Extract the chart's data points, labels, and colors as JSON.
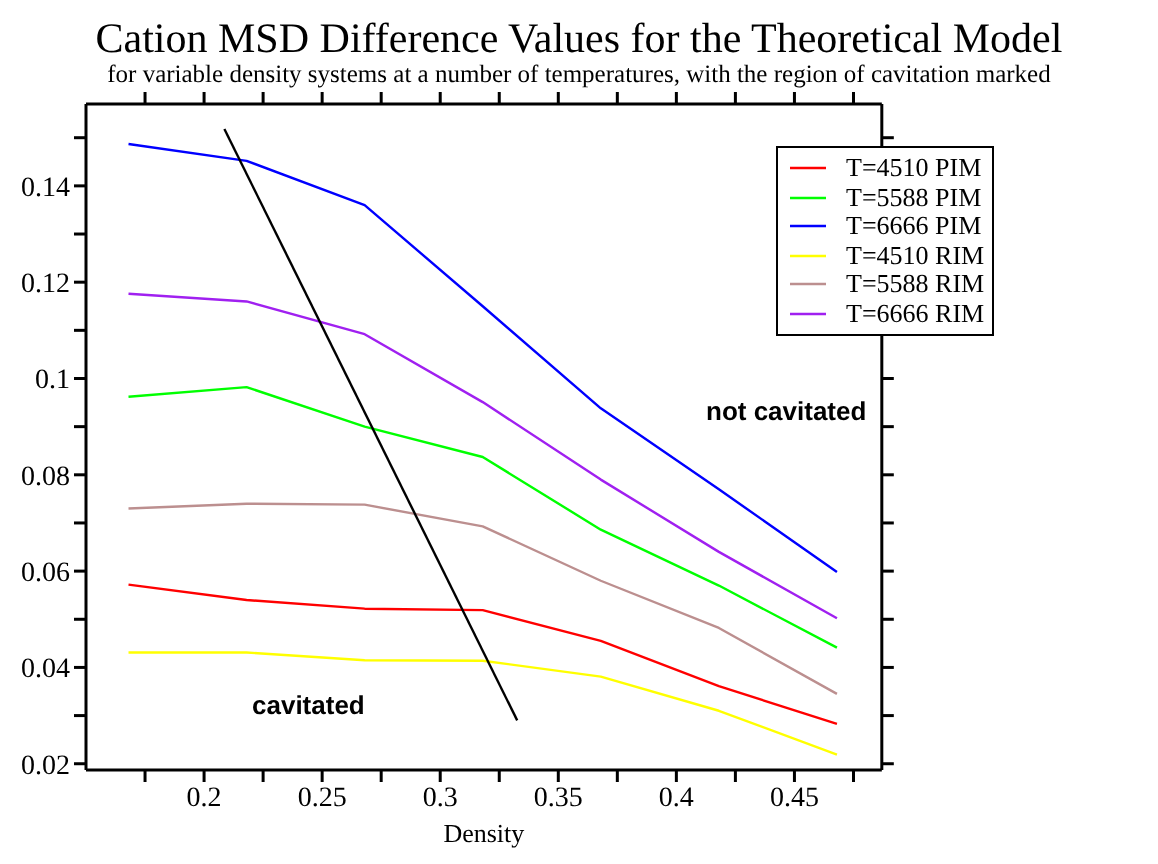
{
  "chart_data": {
    "type": "line",
    "title": "Cation MSD Difference Values for the Theoretical Model",
    "subtitle": "for variable density systems at a number of temperatures, with the region of cavitation marked",
    "xlabel": "Density",
    "x": [
      0.168,
      0.218,
      0.268,
      0.318,
      0.368,
      0.418,
      0.468
    ],
    "series": [
      {
        "name": "T=4510 PIM",
        "color": "#ff0000",
        "values": [
          0.0572,
          0.054,
          0.0522,
          0.0519,
          0.0455,
          0.0361,
          0.0283
        ]
      },
      {
        "name": "T=5588 PIM",
        "color": "#00ff00",
        "values": [
          0.0962,
          0.0982,
          0.09,
          0.0837,
          0.0686,
          0.057,
          0.0441
        ]
      },
      {
        "name": "T=6666 PIM",
        "color": "#0000ff",
        "values": [
          0.1487,
          0.1452,
          0.136,
          0.115,
          0.0938,
          0.077,
          0.0598
        ]
      },
      {
        "name": "T=4510 RIM",
        "color": "#ffff00",
        "values": [
          0.0431,
          0.0431,
          0.0415,
          0.0414,
          0.0381,
          0.031,
          0.0219
        ]
      },
      {
        "name": "T=5588 RIM",
        "color": "#bc8f8f",
        "values": [
          0.073,
          0.074,
          0.0738,
          0.0693,
          0.058,
          0.0482,
          0.0345
        ]
      },
      {
        "name": "T=6666 RIM",
        "color": "#a020f0",
        "values": [
          0.1176,
          0.116,
          0.1092,
          0.0951,
          0.079,
          0.064,
          0.0502
        ]
      },
      {
        "type": "line",
        "color": "#000000",
        "x": [
          0.2086,
          0.3326
        ],
        "values": [
          0.1518,
          0.029
        ]
      }
    ],
    "annotations": [
      "cavitated",
      "not cavitated"
    ],
    "xlim": [
      0.15,
      0.487
    ],
    "xticks": [
      {
        "value": 0.175,
        "label": null
      },
      0.2,
      {
        "value": 0.225,
        "label": null
      },
      0.25,
      {
        "value": 0.275,
        "label": null
      },
      0.3,
      {
        "value": 0.325,
        "label": null
      },
      0.35,
      {
        "value": 0.375,
        "label": null
      },
      0.4,
      {
        "value": 0.425,
        "label": null
      },
      0.45,
      {
        "value": 0.475,
        "label": null
      }
    ],
    "ylim": [
      0.0187,
      0.157
    ],
    "yticks": [
      0.02,
      {
        "value": 0.03,
        "label": null
      },
      0.04,
      {
        "value": 0.05,
        "label": null
      },
      0.06,
      {
        "value": 0.07,
        "label": null
      },
      0.08,
      {
        "value": 0.09,
        "label": null
      },
      0.1,
      {
        "value": 0.11,
        "label": null
      },
      0.12,
      {
        "value": 0.13,
        "label": null
      },
      0.14,
      {
        "value": 0.15,
        "label": null
      }
    ],
    "grid": false,
    "legend": "top right",
    "marker": "none",
    "line_style": "solid"
  }
}
